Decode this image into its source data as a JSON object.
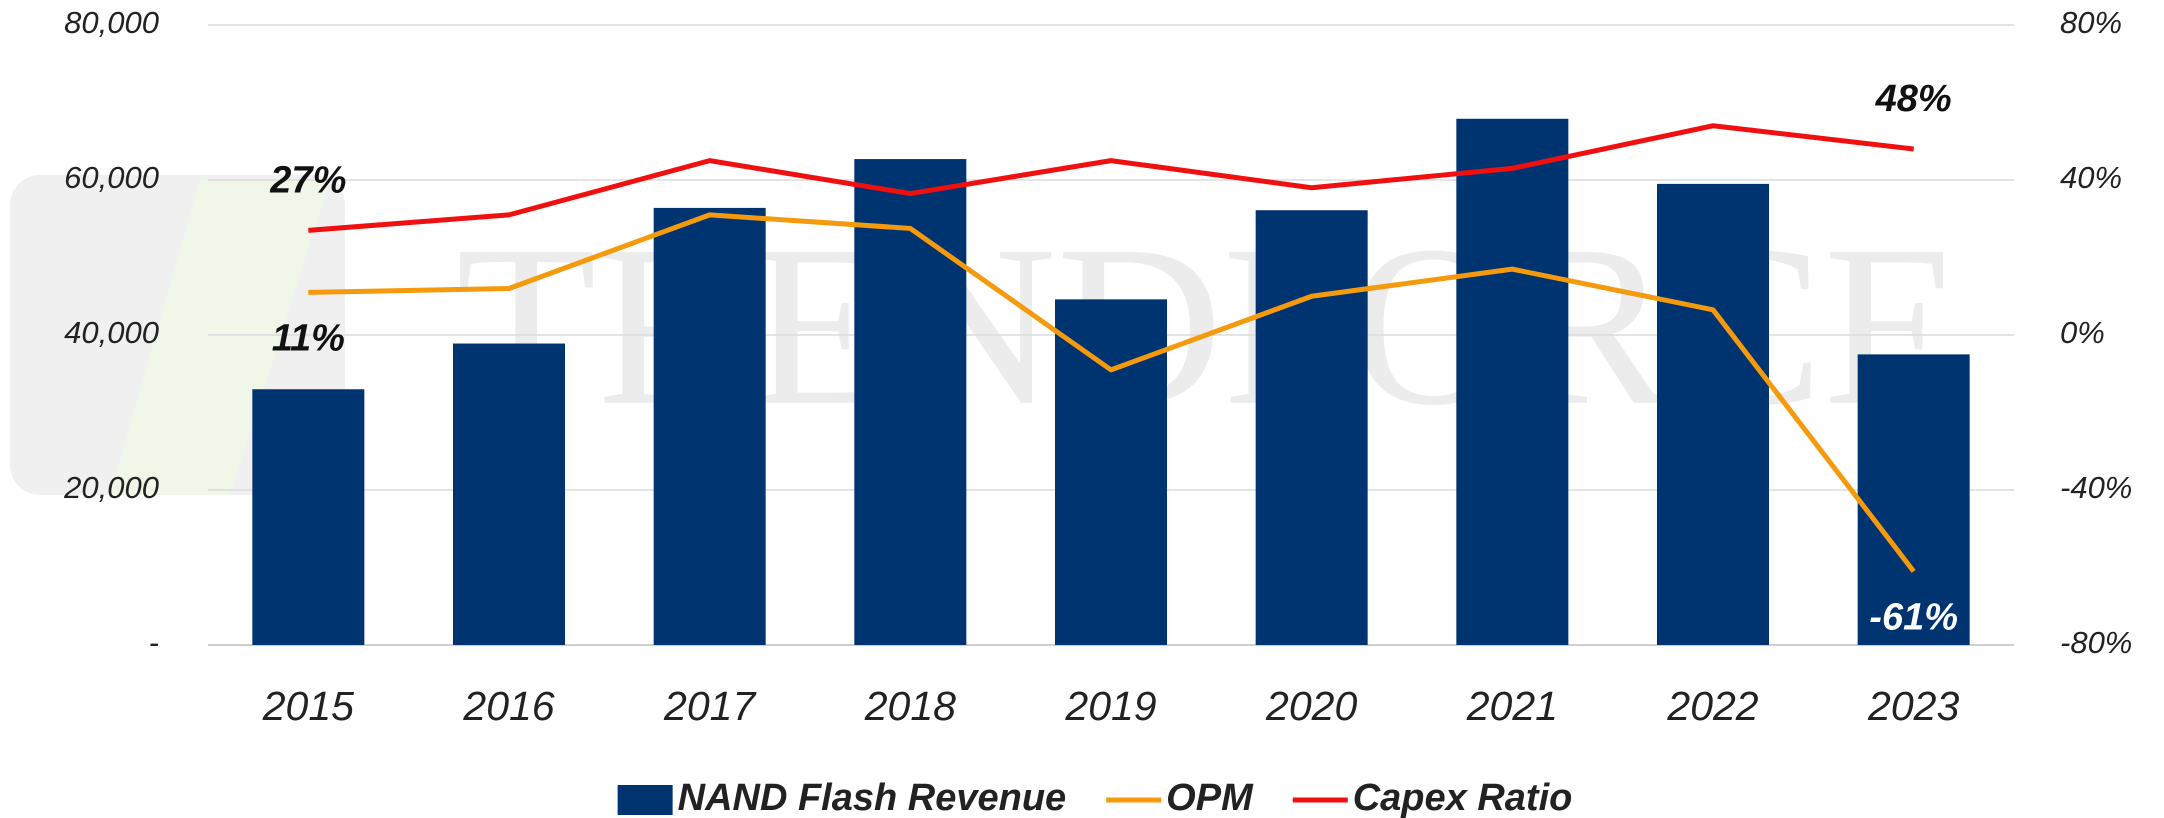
{
  "chart_data": {
    "type": "bar_line",
    "watermark": "TRENDFORCE",
    "categories": [
      "2015",
      "2016",
      "2017",
      "2018",
      "2019",
      "2020",
      "2021",
      "2022",
      "2023"
    ],
    "series": [
      {
        "name": "NAND Flash Revenue",
        "type": "bar",
        "color": "#003471",
        "values": [
          33000,
          38900,
          56400,
          62700,
          44600,
          56100,
          67900,
          59500,
          37500
        ]
      },
      {
        "name": "OPM",
        "type": "line",
        "axis": "y2",
        "color": "#f59a0c",
        "values": [
          11,
          12,
          31,
          27.5,
          -9,
          10,
          17,
          6.5,
          -61
        ],
        "value_labels": [
          "11%",
          null,
          null,
          null,
          null,
          null,
          null,
          null,
          "-61%"
        ]
      },
      {
        "name": "Capex Ratio",
        "type": "line",
        "axis": "y2",
        "color": "#f01010",
        "values": [
          27,
          31,
          45,
          36.5,
          45,
          38,
          43,
          54,
          48
        ],
        "value_labels": [
          "27%",
          null,
          null,
          null,
          null,
          null,
          null,
          null,
          "48%"
        ]
      }
    ],
    "ylim": [
      0,
      80000
    ],
    "yticks": [
      {
        "value": 0,
        "label": "-"
      },
      {
        "value": 20000,
        "label": "20,000"
      },
      {
        "value": 40000,
        "label": "40,000"
      },
      {
        "value": 60000,
        "label": "60,000"
      },
      {
        "value": 80000,
        "label": "80,000"
      }
    ],
    "y2lim": [
      -80,
      80
    ],
    "y2ticks": [
      {
        "value": -80,
        "label": "-80%"
      },
      {
        "value": -40,
        "label": "-40%"
      },
      {
        "value": 0,
        "label": "0%"
      },
      {
        "value": 40,
        "label": "40%"
      },
      {
        "value": 80,
        "label": "80%"
      }
    ],
    "grid": true,
    "legend": "bottom"
  }
}
